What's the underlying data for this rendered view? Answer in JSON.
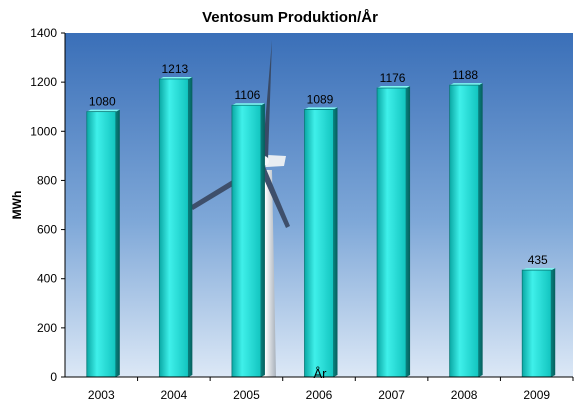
{
  "chart_data": {
    "type": "bar",
    "title": "Ventosum Produktion/År",
    "xlabel": "År",
    "ylabel": "MWh",
    "categories": [
      "2003",
      "2004",
      "2005",
      "2006",
      "2007",
      "2008",
      "2009"
    ],
    "values": [
      1080,
      1213,
      1106,
      1089,
      1176,
      1188,
      435
    ],
    "ylim": [
      0,
      1400
    ],
    "yticks": [
      0,
      200,
      400,
      600,
      800,
      1000,
      1200,
      1400
    ],
    "grid": false,
    "legend": "none",
    "bar_color": "#22d6d0",
    "background": "photo of a wind turbine against a blue sky"
  }
}
